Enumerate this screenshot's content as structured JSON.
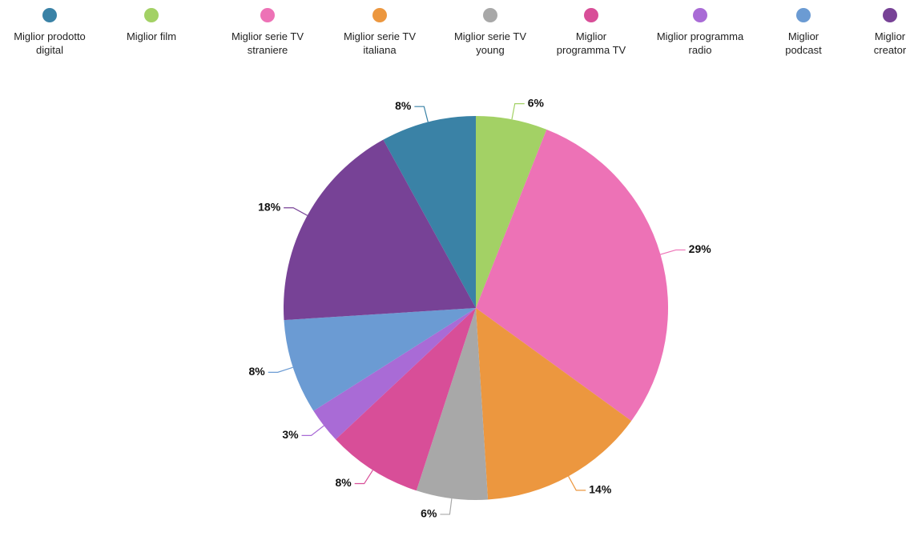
{
  "chart_data": {
    "type": "pie",
    "categories": [
      "Miglior prodotto digital",
      "Miglior film",
      "Miglior serie TV straniere",
      "Miglior serie TV italiana",
      "Miglior serie TV young",
      "Miglior programma TV",
      "Miglior programma radio",
      "Miglior podcast",
      "Miglior creator"
    ],
    "values": [
      8,
      6,
      29,
      14,
      6,
      8,
      3,
      8,
      18
    ],
    "value_labels": [
      "8%",
      "6%",
      "29%",
      "14%",
      "6%",
      "8%",
      "3%",
      "8%",
      "18%"
    ],
    "colors": [
      "#3a82a6",
      "#a3d165",
      "#ed72b6",
      "#ec973f",
      "#a8a8a8",
      "#d84e98",
      "#a96bd6",
      "#6b9bd3",
      "#774296"
    ],
    "legend": "top"
  }
}
